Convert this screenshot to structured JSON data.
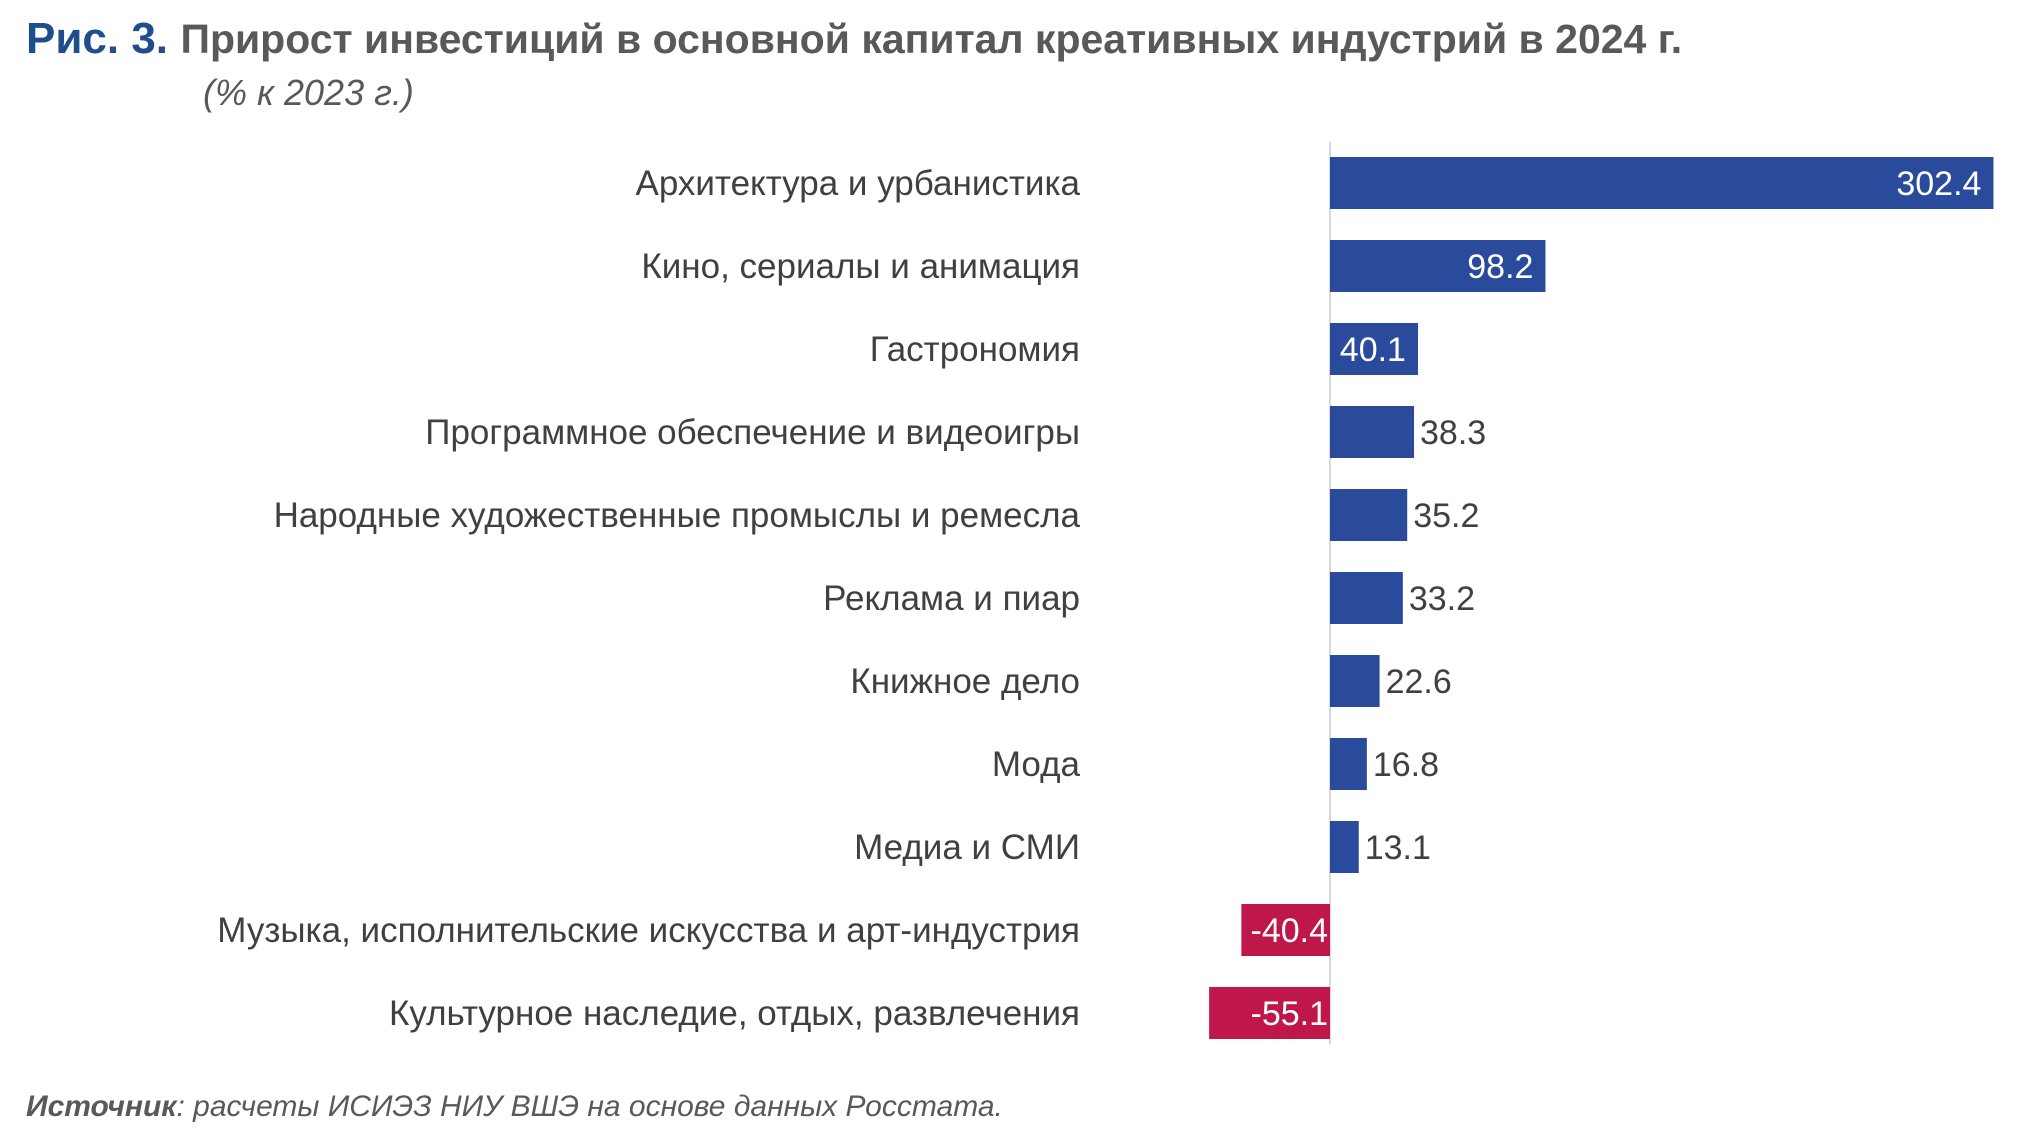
{
  "figure": {
    "number": "Рис. 3.",
    "title": "Прирост инвестиций в основной капитал креативных индустрий в 2024 г.",
    "subtitle": "(% к 2023 г.)"
  },
  "source": {
    "label": "Источник",
    "text": ": расчеты ИСИЭЗ НИУ ВШЭ на основе данных Росстата."
  },
  "colors": {
    "positive": "#2a4b9b",
    "negative": "#c0174a",
    "label_text": "#404040",
    "axis": "#d9d9d9"
  },
  "chart_data": {
    "type": "bar",
    "orientation": "horizontal",
    "title": "Прирост инвестиций в основной капитал креативных индустрий в 2024 г.",
    "subtitle": "(% к 2023 г.)",
    "xlabel": "",
    "ylabel": "",
    "grid": false,
    "legend": "none",
    "categories": [
      "Архитектура и урбанистика",
      "Кино, сериалы и анимация",
      "Гастрономия",
      "Программное обеспечение и видеоигры",
      "Народные художественные промыслы и ремесла",
      "Реклама и пиар",
      "Книжное дело",
      "Мода",
      "Медиа и СМИ",
      "Музыка, исполнительские искусства и арт-индустрия",
      "Культурное наследие, отдых, развлечения"
    ],
    "values": [
      302.4,
      98.2,
      40.1,
      38.3,
      35.2,
      33.2,
      22.6,
      16.8,
      13.1,
      -40.4,
      -55.1
    ],
    "value_labels": [
      "302.4",
      "98.2",
      "40.1",
      "38.3",
      "35.2",
      "33.2",
      "22.6",
      "16.8",
      "13.1",
      "-40.4",
      "-55.1"
    ],
    "xlim": [
      -55.1,
      302.4
    ]
  }
}
